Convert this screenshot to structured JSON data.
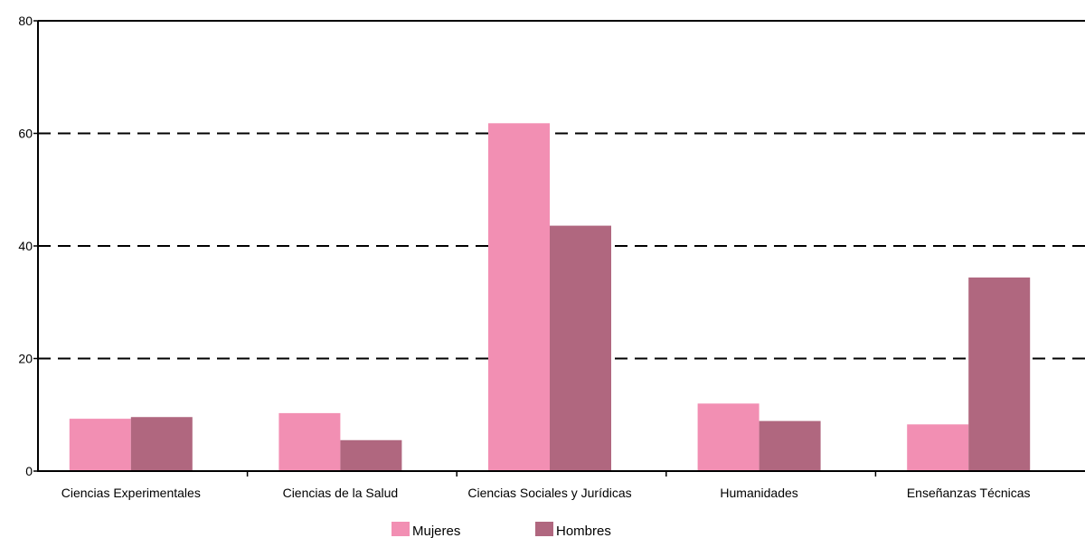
{
  "chart_data": {
    "type": "bar",
    "categories": [
      "Ciencias Experimentales",
      "Ciencias de la Salud",
      "Ciencias Sociales y Jurídicas",
      "Humanidades",
      "Enseñanzas Técnicas"
    ],
    "series": [
      {
        "name": "Mujeres",
        "values": [
          9.3,
          10.3,
          61.8,
          12.0,
          8.3
        ],
        "color": "#f28fb3"
      },
      {
        "name": "Hombres",
        "values": [
          9.6,
          5.5,
          43.6,
          8.9,
          34.4
        ],
        "color": "#b0677f"
      }
    ],
    "ylim": [
      0,
      80
    ],
    "yticks": [
      "0",
      "20",
      "40",
      "60",
      "80"
    ],
    "grid": true,
    "grid_style": "dashed",
    "legend_position": "bottom-center",
    "title": "",
    "xlabel": "",
    "ylabel": ""
  }
}
